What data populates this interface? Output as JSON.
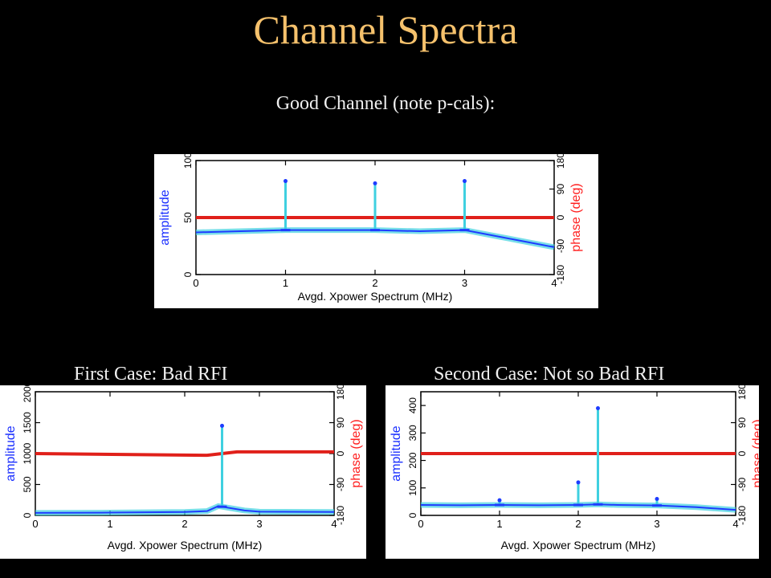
{
  "page": {
    "title": "Channel Spectra",
    "subtitle": "Good Channel (note p-cals):",
    "caption_left": "First Case: Bad RFI",
    "caption_right": "Second Case: Not so Bad RFI"
  },
  "colors": {
    "background": "#000000",
    "title": "#f5c16c",
    "text": "#f0f0f0",
    "amplitude": "#1e3cff",
    "amplitude_fill": "#3fd0e0",
    "phase": "#e0201a",
    "axis_label_amp": "#1a2fff",
    "axis_label_phase": "#ff2020"
  },
  "chart_data": [
    {
      "type": "line",
      "xlabel": "Avgd. Xpower Spectrum (MHz)",
      "ylabel": "amplitude",
      "y2label": "phase (deg)",
      "xlim": [
        0,
        4
      ],
      "ylim": [
        0,
        100
      ],
      "y2lim": [
        -180,
        180
      ],
      "x_ticks": [
        "0",
        "1",
        "2",
        "3",
        "4"
      ],
      "y_ticks": [
        "0",
        "50",
        "100"
      ],
      "y2_ticks": [
        "-180",
        "-90",
        "0",
        "90",
        "180"
      ],
      "series": [
        {
          "name": "amplitude",
          "x": [
            0,
            0.5,
            1,
            1.5,
            2,
            2.5,
            3,
            3.2,
            3.4,
            3.6,
            3.8,
            4
          ],
          "y": [
            37,
            38,
            39,
            39,
            39,
            38,
            39,
            36,
            33,
            30,
            27,
            24
          ]
        },
        {
          "name": "phase",
          "x": [
            0,
            4
          ],
          "y": [
            0,
            0
          ]
        }
      ],
      "spikes": [
        {
          "x": 1,
          "y": 82
        },
        {
          "x": 2,
          "y": 80
        },
        {
          "x": 3,
          "y": 82
        }
      ]
    },
    {
      "type": "line",
      "xlabel": "Avgd. Xpower Spectrum (MHz)",
      "ylabel": "amplitude",
      "y2label": "phase (deg)",
      "xlim": [
        0,
        4
      ],
      "ylim": [
        0,
        2000
      ],
      "y2lim": [
        -180,
        180
      ],
      "x_ticks": [
        "0",
        "1",
        "2",
        "3",
        "4"
      ],
      "y_ticks": [
        "0",
        "500",
        "1000",
        "1500",
        "2000"
      ],
      "y2_ticks": [
        "-180",
        "-90",
        "0",
        "90",
        "180"
      ],
      "series": [
        {
          "name": "amplitude",
          "x": [
            0,
            1,
            2,
            2.3,
            2.45,
            2.6,
            2.8,
            3,
            4
          ],
          "y": [
            40,
            45,
            55,
            70,
            150,
            120,
            80,
            60,
            55
          ]
        },
        {
          "name": "phase",
          "x": [
            0,
            2.3,
            2.5,
            2.7,
            4
          ],
          "y": [
            0,
            -5,
            0,
            5,
            5
          ]
        }
      ],
      "spikes": [
        {
          "x": 2.5,
          "y": 1450
        }
      ]
    },
    {
      "type": "line",
      "xlabel": "Avgd. Xpower Spectrum (MHz)",
      "ylabel": "amplitude",
      "y2label": "phase (deg)",
      "xlim": [
        0,
        4
      ],
      "ylim": [
        0,
        450
      ],
      "y2lim": [
        -180,
        180
      ],
      "x_ticks": [
        "0",
        "1",
        "2",
        "3",
        "4"
      ],
      "y_ticks": [
        "0",
        "100",
        "200",
        "300",
        "400"
      ],
      "y2_ticks": [
        "-180",
        "-90",
        "0",
        "90",
        "180"
      ],
      "series": [
        {
          "name": "amplitude",
          "x": [
            0,
            0.5,
            1,
            1.5,
            2,
            2.25,
            2.5,
            3,
            3.5,
            4
          ],
          "y": [
            38,
            37,
            38,
            37,
            38,
            40,
            38,
            36,
            30,
            20
          ]
        },
        {
          "name": "phase",
          "x": [
            0,
            4
          ],
          "y": [
            0,
            0
          ]
        }
      ],
      "spikes": [
        {
          "x": 1,
          "y": 55
        },
        {
          "x": 2,
          "y": 120
        },
        {
          "x": 2.25,
          "y": 390
        },
        {
          "x": 3,
          "y": 60
        }
      ]
    }
  ]
}
